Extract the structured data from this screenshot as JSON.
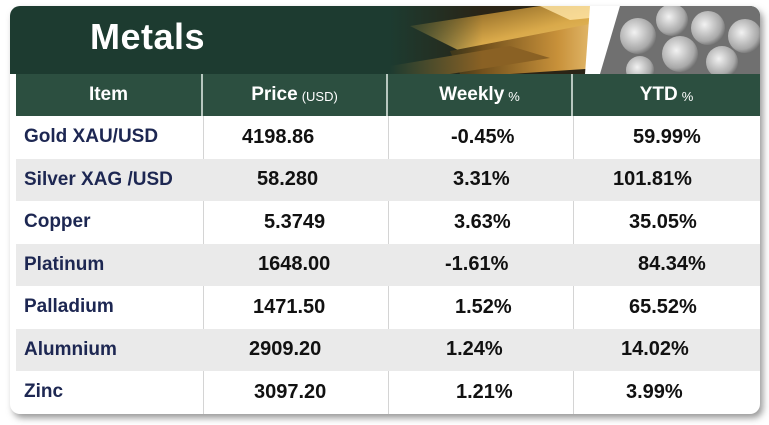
{
  "banner": {
    "title": "Metals"
  },
  "table": {
    "headers": {
      "item": "Item",
      "price": "Price",
      "price_unit": "(USD)",
      "weekly": "Weekly",
      "weekly_unit": "%",
      "ytd": "YTD",
      "ytd_unit": "%"
    },
    "rows": [
      {
        "item": "Gold XAU/USD",
        "price": "4198.86",
        "weekly": "-0.45%",
        "ytd": "59.99%"
      },
      {
        "item": "Silver XAG /USD",
        "price": "58.280",
        "weekly": "3.31%",
        "ytd": "101.81%"
      },
      {
        "item": "Copper",
        "price": "5.3749",
        "weekly": "3.63%",
        "ytd": "35.05%"
      },
      {
        "item": "Platinum",
        "price": "1648.00",
        "weekly": "-1.61%",
        "ytd": "84.34%"
      },
      {
        "item": "Palladium",
        "price": "1471.50",
        "weekly": "1.52%",
        "ytd": "65.52%"
      },
      {
        "item": "Alumnium",
        "price": "2909.20",
        "weekly": "1.24%",
        "ytd": "14.02%"
      },
      {
        "item": "Zinc",
        "price": "3097.20",
        "weekly": "1.21%",
        "ytd": "3.99%"
      }
    ]
  },
  "colors": {
    "banner_bg": "#1d3b30",
    "header_bg": "#2c4f40",
    "row_shade": "#eaeaea",
    "item_text": "#1d2752"
  }
}
